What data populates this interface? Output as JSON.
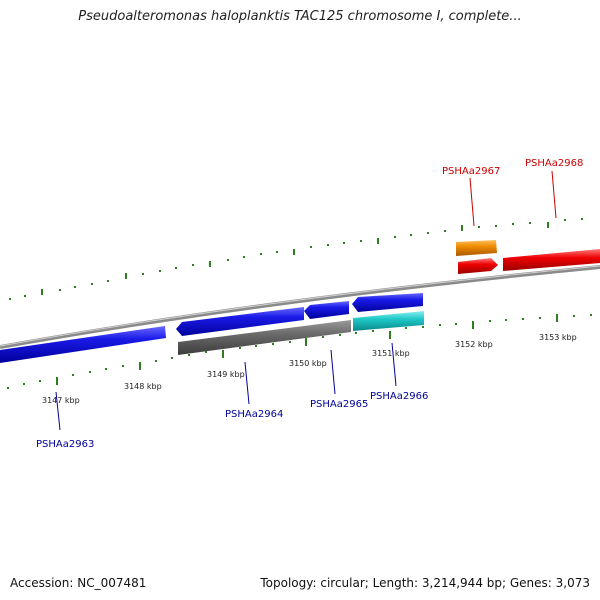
{
  "title": "Pseudoalteromonas haloplanktis TAC125 chromosome I, complete...",
  "footer": {
    "accession": "Accession: NC_007481",
    "topology": "Topology: circular; Length: 3,214,944 bp; Genes: 3,073"
  },
  "colors": {
    "forward_label": "#cc0000",
    "reverse_label": "#000099",
    "tick": "#2e7d1e",
    "backbone": "#8a8a8a",
    "blue_gene": "#1010e0",
    "gray_gene": "#6a6a6a",
    "cyan_gene": "#20c8c8",
    "orange_gene": "#f08c00",
    "red_gene": "#e80000"
  },
  "kbp_labels": [
    "3147 kbp",
    "3148 kbp",
    "3149 kbp",
    "3150 kbp",
    "3151 kbp",
    "3152 kbp",
    "3153 kbp"
  ],
  "gene_labels": [
    "PSHAa2963",
    "PSHAa2964",
    "PSHAa2965",
    "PSHAa2966",
    "PSHAa2967",
    "PSHAa2968"
  ]
}
